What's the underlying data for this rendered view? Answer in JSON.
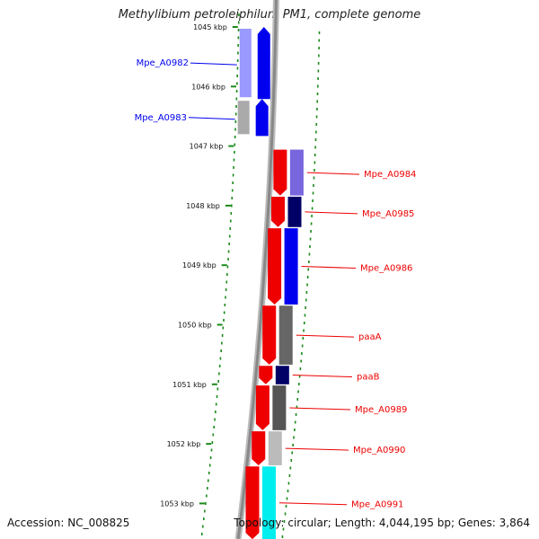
{
  "title": "Methylibium petroleiphilum PM1, complete genome",
  "accession": "Accession: NC_008825",
  "summary": "Topology: circular; Length: 4,044,195 bp; Genes: 3,864",
  "colors": {
    "reverse": "#0000ee",
    "forward": "#ee0000",
    "ring": "#888888",
    "ticks": "#1a8a1a"
  },
  "ticks": [
    "1045 kbp",
    "1046 kbp",
    "1047 kbp",
    "1048 kbp",
    "1049 kbp",
    "1050 kbp",
    "1051 kbp",
    "1052 kbp",
    "1053 kbp"
  ],
  "reverse_genes": [
    {
      "name": "Mpe_A0982",
      "start": 1045.0,
      "end": 1046.21
    },
    {
      "name": "Mpe_A0983",
      "start": 1046.21,
      "end": 1046.83
    }
  ],
  "forward_genes": [
    {
      "name": "Mpe_A0984",
      "start": 1047.06,
      "end": 1047.83
    },
    {
      "name": "Mpe_A0985",
      "start": 1047.85,
      "end": 1048.36
    },
    {
      "name": "Mpe_A0986",
      "start": 1048.38,
      "end": 1049.66
    },
    {
      "name": "paaA",
      "start": 1049.68,
      "end": 1050.67
    },
    {
      "name": "paaB",
      "start": 1050.69,
      "end": 1051.0
    },
    {
      "name": "Mpe_A0989",
      "start": 1051.02,
      "end": 1051.77
    },
    {
      "name": "Mpe_A0990",
      "start": 1051.79,
      "end": 1052.36
    },
    {
      "name": "Mpe_A0991",
      "start": 1052.38,
      "end": 1053.6
    }
  ]
}
